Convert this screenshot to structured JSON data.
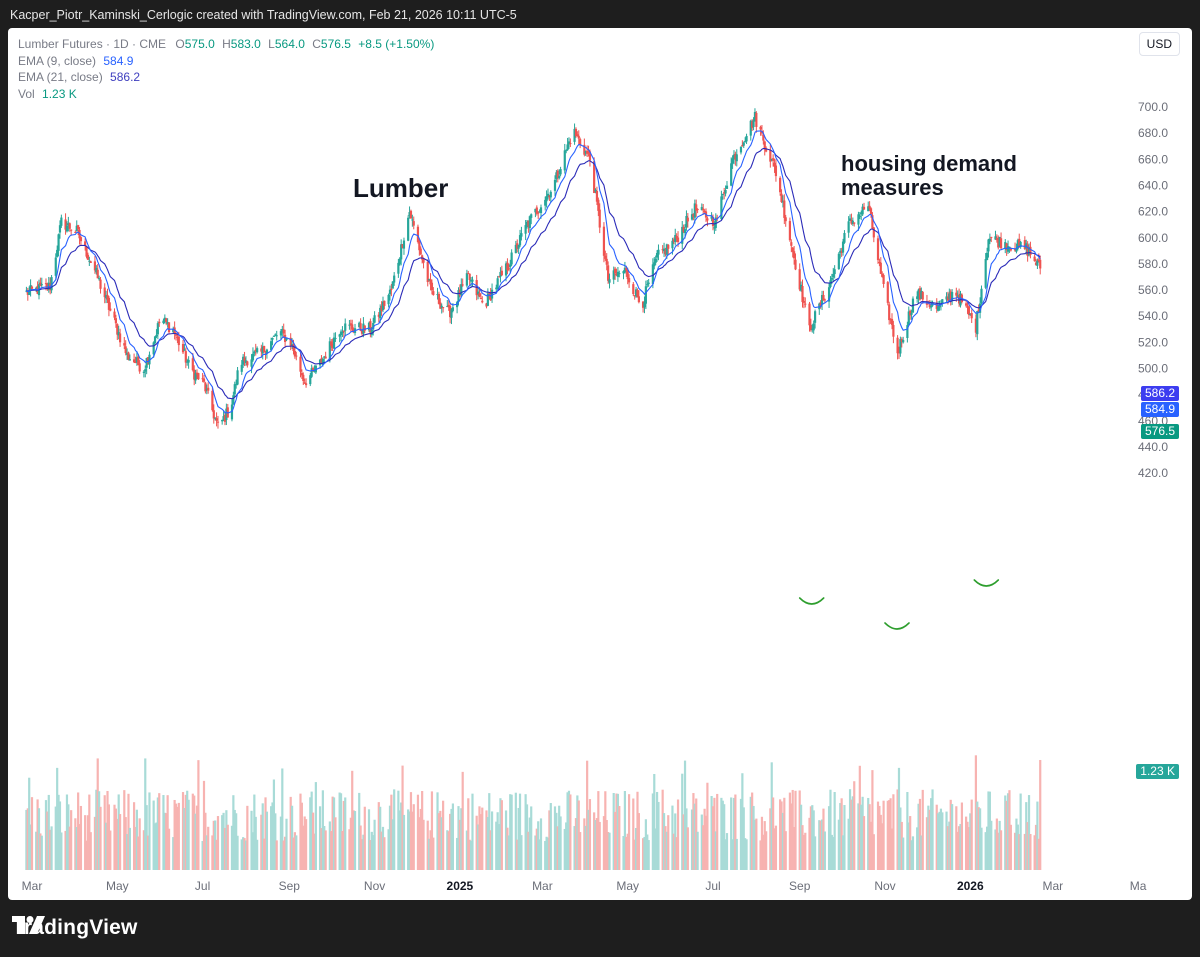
{
  "header": {
    "attribution": "Kacper_Piotr_Kaminski_Cerlogic created with TradingView.com, Feb 21, 2026 10:11 UTC-5"
  },
  "legend": {
    "symbol": "Lumber Futures · 1D · CME",
    "ohlc": [
      {
        "key": "O",
        "val": "575.0"
      },
      {
        "key": "H",
        "val": "583.0"
      },
      {
        "key": "L",
        "val": "564.0"
      },
      {
        "key": "C",
        "val": "576.5"
      }
    ],
    "change": "+8.5 (+1.50%)",
    "ema9_label": "EMA (9, close)",
    "ema9_value": "584.9",
    "ema21_label": "EMA (21, close)",
    "ema21_value": "586.2",
    "vol_label": "Vol",
    "vol_value": "1.23 K"
  },
  "currency_button": "USD",
  "annotations": {
    "lumber": "Lumber",
    "housing_line1": "housing demand",
    "housing_line2": "measures"
  },
  "price_tags": {
    "ema21": "586.2",
    "ema9": "584.9",
    "close": "576.5",
    "volume": "1.23 K"
  },
  "footer": {
    "brand": "TradingView"
  },
  "colors": {
    "up": "#26a69a",
    "down": "#ef5350",
    "ema9": "#2962ff",
    "ema21": "#2b2bb8",
    "vol_up": "#a8dbd7",
    "vol_down": "#f7b3b1",
    "close_tag": "#089981",
    "annotation_arc": "#2e9e2e"
  },
  "chart_data": {
    "type": "candlestick",
    "y_ticks": [
      "700.0",
      "680.0",
      "660.0",
      "640.0",
      "620.0",
      "600.0",
      "580.0",
      "560.0",
      "540.0",
      "520.0",
      "500.0",
      "480.0",
      "460.0",
      "440.0",
      "420.0"
    ],
    "ylim": [
      420,
      700
    ],
    "x_ticks": [
      {
        "label": "Mar",
        "bold": false
      },
      {
        "label": "May",
        "bold": false
      },
      {
        "label": "Jul",
        "bold": false
      },
      {
        "label": "Sep",
        "bold": false
      },
      {
        "label": "Nov",
        "bold": false
      },
      {
        "label": "2025",
        "bold": true
      },
      {
        "label": "Mar",
        "bold": false
      },
      {
        "label": "May",
        "bold": false
      },
      {
        "label": "Jul",
        "bold": false
      },
      {
        "label": "Sep",
        "bold": false
      },
      {
        "label": "Nov",
        "bold": false
      },
      {
        "label": "2026",
        "bold": true
      },
      {
        "label": "Mar",
        "bold": false
      },
      {
        "label": "Ma",
        "bold": false
      }
    ],
    "x_dates": [
      "2024-03",
      "2024-05",
      "2024-07",
      "2024-09",
      "2024-11",
      "2025-01",
      "2025-03",
      "2025-05",
      "2025-07",
      "2025-09",
      "2025-11",
      "2026-01",
      "2026-03",
      "2026-05"
    ],
    "date_range": [
      "2024-02-26",
      "2026-02-20"
    ],
    "price_path": [
      [
        "2024-02-26",
        558
      ],
      [
        "2024-03-14",
        563
      ],
      [
        "2024-03-22",
        612
      ],
      [
        "2024-04-02",
        605
      ],
      [
        "2024-04-15",
        575
      ],
      [
        "2024-05-08",
        510
      ],
      [
        "2024-05-20",
        500
      ],
      [
        "2024-06-01",
        538
      ],
      [
        "2024-06-10",
        530
      ],
      [
        "2024-06-22",
        500
      ],
      [
        "2024-07-02",
        488
      ],
      [
        "2024-07-12",
        455
      ],
      [
        "2024-07-21",
        470
      ],
      [
        "2024-07-28",
        505
      ],
      [
        "2024-08-12",
        512
      ],
      [
        "2024-08-25",
        528
      ],
      [
        "2024-09-02",
        520
      ],
      [
        "2024-09-12",
        490
      ],
      [
        "2024-09-21",
        500
      ],
      [
        "2024-10-08",
        532
      ],
      [
        "2024-10-29",
        530
      ],
      [
        "2024-11-13",
        560
      ],
      [
        "2024-11-26",
        620
      ],
      [
        "2024-12-11",
        560
      ],
      [
        "2024-12-24",
        542
      ],
      [
        "2025-01-07",
        570
      ],
      [
        "2025-01-18",
        548
      ],
      [
        "2025-02-05",
        580
      ],
      [
        "2025-02-18",
        610
      ],
      [
        "2025-03-09",
        640
      ],
      [
        "2025-03-23",
        682
      ],
      [
        "2025-04-04",
        660
      ],
      [
        "2025-04-17",
        568
      ],
      [
        "2025-04-29",
        575
      ],
      [
        "2025-05-11",
        548
      ],
      [
        "2025-05-22",
        585
      ],
      [
        "2025-06-04",
        598
      ],
      [
        "2025-06-18",
        622
      ],
      [
        "2025-07-03",
        612
      ],
      [
        "2025-07-15",
        660
      ],
      [
        "2025-07-31",
        692
      ],
      [
        "2025-08-15",
        650
      ],
      [
        "2025-08-27",
        590
      ],
      [
        "2025-09-08",
        530
      ],
      [
        "2025-09-23",
        566
      ],
      [
        "2025-10-06",
        610
      ],
      [
        "2025-10-20",
        625
      ],
      [
        "2025-10-31",
        560
      ],
      [
        "2025-11-10",
        512
      ],
      [
        "2025-11-23",
        558
      ],
      [
        "2025-12-09",
        545
      ],
      [
        "2025-12-21",
        560
      ],
      [
        "2026-01-05",
        532
      ],
      [
        "2026-01-14",
        600
      ],
      [
        "2026-01-28",
        595
      ],
      [
        "2026-02-10",
        592
      ],
      [
        "2026-02-20",
        576.5
      ]
    ],
    "minimums_marked": [
      "2025-09",
      "2025-11",
      "2026-01"
    ],
    "last": {
      "close": 576.5,
      "ema9": 584.9,
      "ema21": 586.2,
      "volume": "1.23 K"
    }
  }
}
